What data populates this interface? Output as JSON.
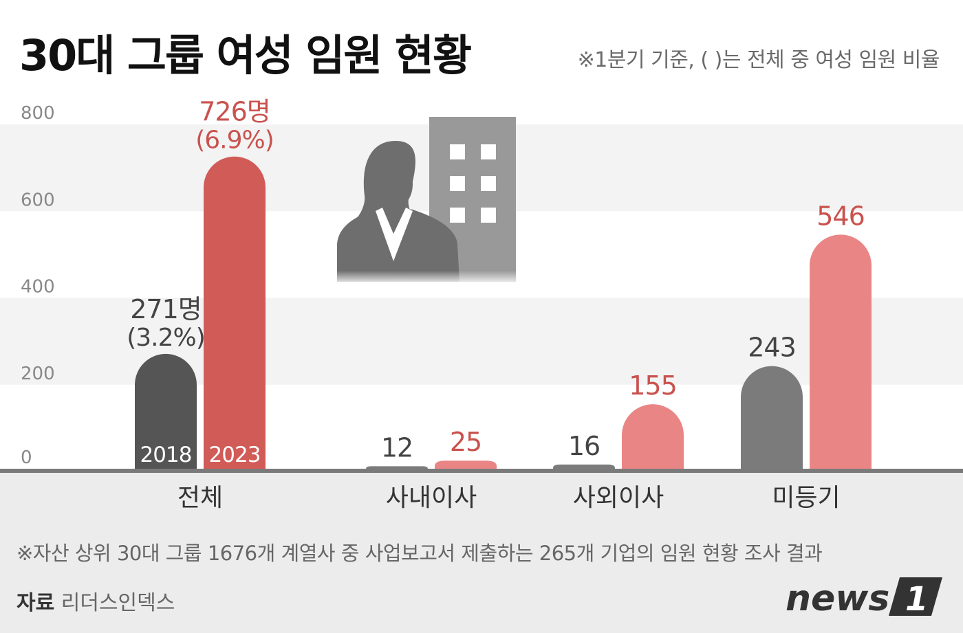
{
  "title": "30대 그룹 여성 임원 현황",
  "note": "※1분기 기준, ( )는 전체 중 여성 임원 비율",
  "footnote": "※자산 상위 30대 그룹 1676개 계열사 중 사업보고서 제출하는 265개 기업의 임원 현황 조사 결과",
  "source": {
    "label": "자료",
    "name": "리더스인덱스"
  },
  "logo": {
    "text": "news",
    "mark": "1"
  },
  "colors": {
    "y2018": "#555555",
    "y2023_total": "#d15b57",
    "y2023": "#ea8585",
    "grey_mid": "#7b7b7b",
    "label_red": "#c9524e"
  },
  "chart_data": {
    "type": "bar",
    "categories": [
      "전체",
      "사내이사",
      "사외이사",
      "미등기"
    ],
    "series": [
      {
        "name": "2018",
        "values": [
          271,
          12,
          16,
          243
        ]
      },
      {
        "name": "2023",
        "values": [
          726,
          25,
          155,
          546
        ]
      }
    ],
    "value_labels": [
      [
        "271명",
        "12",
        "16",
        "243"
      ],
      [
        "726명",
        "25",
        "155",
        "546"
      ]
    ],
    "percent_labels": [
      [
        "(3.2%)",
        null,
        null,
        null
      ],
      [
        "(6.9%)",
        null,
        null,
        null
      ]
    ],
    "ylim": [
      0,
      800
    ],
    "yticks": [
      0,
      200,
      400,
      600,
      800
    ],
    "grid": "alternating bands",
    "legend": "year labels inside first group's bars"
  }
}
